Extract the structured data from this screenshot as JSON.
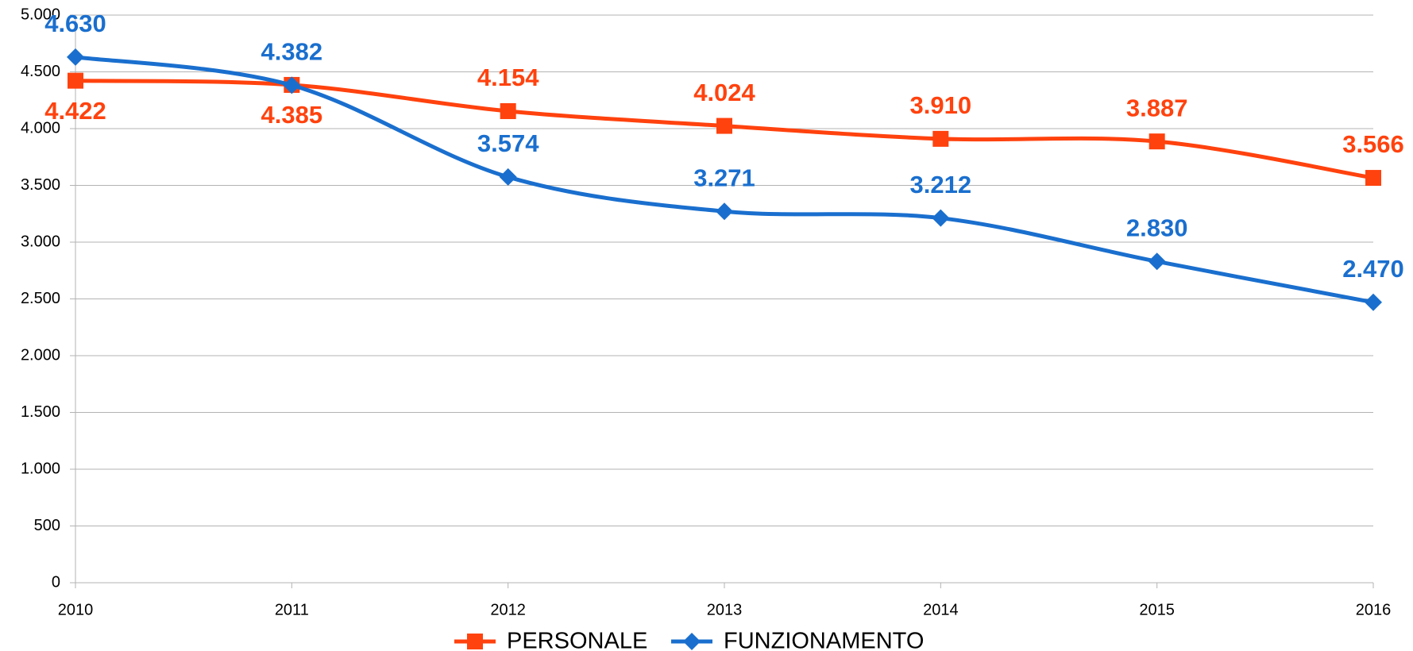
{
  "chart_data": {
    "type": "line",
    "categories": [
      "2010",
      "2011",
      "2012",
      "2013",
      "2014",
      "2015",
      "2016"
    ],
    "series": [
      {
        "name": "PERSONALE",
        "color": "#ff420e",
        "marker": "square",
        "values": [
          4422,
          4385,
          4154,
          4024,
          3910,
          3887,
          3566
        ],
        "value_labels": [
          "4.422",
          "4.385",
          "4.154",
          "4.024",
          "3.910",
          "3.887",
          "3.566"
        ]
      },
      {
        "name": "FUNZIONAMENTO",
        "color": "#1a6fce",
        "marker": "diamond",
        "values": [
          4630,
          4382,
          3574,
          3271,
          3212,
          2830,
          2470
        ],
        "value_labels": [
          "4.630",
          "4.382",
          "3.574",
          "3.271",
          "3.212",
          "2.830",
          "2.470"
        ]
      }
    ],
    "ylim": [
      0,
      5000
    ],
    "yticks": [
      0,
      500,
      {
        "value": 1000,
        "label": "1.000"
      },
      {
        "value": 1500,
        "label": "1.500"
      },
      {
        "value": 2000,
        "label": "2.000"
      },
      {
        "value": 2500,
        "label": "2.500"
      },
      {
        "value": 3000,
        "label": "3.000"
      },
      {
        "value": 3500,
        "label": "3.500"
      },
      {
        "value": 4000,
        "label": "4.000"
      },
      {
        "value": 4500,
        "label": "4.500"
      },
      {
        "value": 5000,
        "label": "5.000"
      }
    ],
    "grid": true,
    "smooth": true,
    "legend": "bottom"
  }
}
